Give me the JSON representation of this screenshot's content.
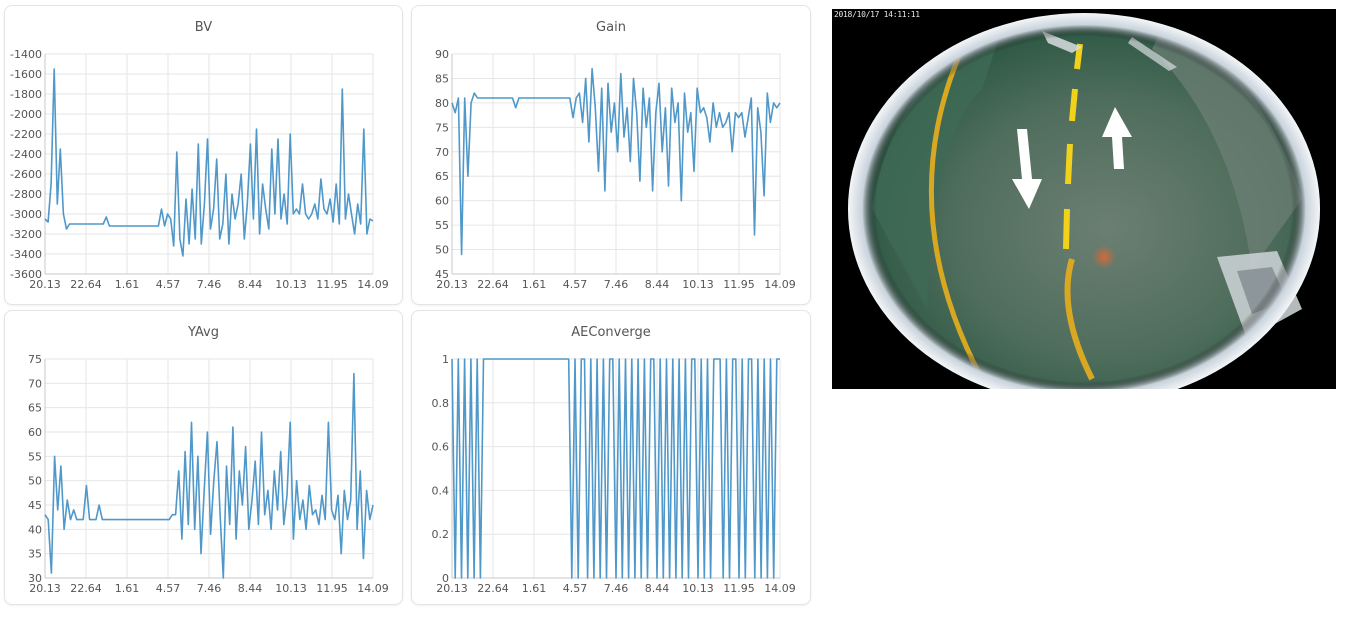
{
  "chart_data": [
    {
      "type": "line",
      "title": "BV",
      "x_tick_labels": [
        "20.13",
        "22.64",
        "1.61",
        "4.57",
        "7.46",
        "8.44",
        "10.13",
        "11.95",
        "14.09"
      ],
      "y_ticks": [
        -1400,
        -1600,
        -1800,
        -2000,
        -2200,
        -2400,
        -2600,
        -2800,
        -3000,
        -3200,
        -3400,
        -3600
      ],
      "ylim": [
        -3600,
        -1400
      ],
      "grid": true,
      "series": [
        {
          "values": [
            -3050,
            -3080,
            -2700,
            -1550,
            -2900,
            -2350,
            -3000,
            -3150,
            -3100,
            -3100,
            -3100,
            -3100,
            -3100,
            -3100,
            -3100,
            -3100,
            -3100,
            -3100,
            -3100,
            -3100,
            -3030,
            -3120,
            -3120,
            -3120,
            -3120,
            -3120,
            -3120,
            -3120,
            -3120,
            -3120,
            -3120,
            -3120,
            -3120,
            -3120,
            -3120,
            -3120,
            -3120,
            -3120,
            -2950,
            -3120,
            -3000,
            -3050,
            -3320,
            -2380,
            -3250,
            -3420,
            -2850,
            -3300,
            -2750,
            -3250,
            -2300,
            -3300,
            -2900,
            -2250,
            -3150,
            -2950,
            -2450,
            -3250,
            -3100,
            -2600,
            -3300,
            -2800,
            -3050,
            -2900,
            -2600,
            -3250,
            -2900,
            -2300,
            -3050,
            -2150,
            -3200,
            -2700,
            -2950,
            -3150,
            -2350,
            -3000,
            -2250,
            -3050,
            -2800,
            -3100,
            -2200,
            -3000,
            -2950,
            -3000,
            -2700,
            -3000,
            -3050,
            -3000,
            -2900,
            -3050,
            -2650,
            -2950,
            -3000,
            -2850,
            -3080,
            -2700,
            -3100,
            -1750,
            -3050,
            -2800,
            -3000,
            -3200,
            -2900,
            -3100,
            -2150,
            -3200,
            -3050,
            -3070
          ]
        }
      ]
    },
    {
      "type": "line",
      "title": "Gain",
      "x_tick_labels": [
        "20.13",
        "22.64",
        "1.61",
        "4.57",
        "7.46",
        "8.44",
        "10.13",
        "11.95",
        "14.09"
      ],
      "y_ticks": [
        90,
        85,
        80,
        75,
        70,
        65,
        60,
        55,
        50,
        45
      ],
      "ylim": [
        45,
        90
      ],
      "grid": true,
      "series": [
        {
          "values": [
            80,
            78,
            81,
            49,
            81,
            65,
            80,
            82,
            81,
            81,
            81,
            81,
            81,
            81,
            81,
            81,
            81,
            81,
            81,
            81,
            79,
            81,
            81,
            81,
            81,
            81,
            81,
            81,
            81,
            81,
            81,
            81,
            81,
            81,
            81,
            81,
            81,
            81,
            77,
            81,
            82,
            76,
            85,
            72,
            87,
            79,
            66,
            83,
            62,
            84,
            74,
            80,
            70,
            86,
            73,
            79,
            68,
            85,
            78,
            64,
            83,
            75,
            81,
            62,
            78,
            84,
            70,
            79,
            63,
            83,
            76,
            80,
            60,
            82,
            74,
            78,
            66,
            83,
            78,
            79,
            77,
            72,
            80,
            75,
            78,
            75,
            76,
            78,
            70,
            78,
            77,
            78,
            73,
            77,
            81,
            53,
            79,
            74,
            61,
            82,
            76,
            80,
            79,
            80
          ]
        }
      ]
    },
    {
      "type": "line",
      "title": "YAvg",
      "x_tick_labels": [
        "20.13",
        "22.64",
        "1.61",
        "4.57",
        "7.46",
        "8.44",
        "10.13",
        "11.95",
        "14.09"
      ],
      "y_ticks": [
        75,
        70,
        65,
        60,
        55,
        50,
        45,
        40,
        35,
        30
      ],
      "ylim": [
        30,
        75
      ],
      "grid": true,
      "series": [
        {
          "values": [
            43,
            42,
            31,
            55,
            44,
            53,
            40,
            46,
            42,
            44,
            42,
            42,
            42,
            49,
            42,
            42,
            42,
            45,
            42,
            42,
            42,
            42,
            42,
            42,
            42,
            42,
            42,
            42,
            42,
            42,
            42,
            42,
            42,
            42,
            42,
            42,
            42,
            42,
            42,
            42,
            43,
            43,
            52,
            38,
            56,
            41,
            62,
            40,
            55,
            35,
            48,
            60,
            39,
            50,
            58,
            43,
            30,
            53,
            41,
            61,
            38,
            52,
            45,
            57,
            40,
            46,
            54,
            41,
            60,
            43,
            48,
            40,
            52,
            44,
            56,
            41,
            47,
            62,
            38,
            50,
            42,
            46,
            40,
            49,
            43,
            44,
            41,
            47,
            42,
            62,
            44,
            42,
            47,
            35,
            48,
            42,
            46,
            72,
            40,
            52,
            34,
            48,
            42,
            45
          ]
        }
      ]
    },
    {
      "type": "line",
      "title": "AEConverge",
      "x_tick_labels": [
        "20.13",
        "22.64",
        "1.61",
        "4.57",
        "7.46",
        "8.44",
        "10.13",
        "11.95",
        "14.09"
      ],
      "y_ticks": [
        1,
        0.8,
        0.6,
        0.4,
        0.2,
        0
      ],
      "ylim": [
        0,
        1
      ],
      "grid": true,
      "series": [
        {
          "values": [
            1,
            0,
            1,
            0,
            1,
            0,
            1,
            0,
            1,
            0,
            1,
            1,
            1,
            1,
            1,
            1,
            1,
            1,
            1,
            1,
            1,
            1,
            1,
            1,
            1,
            1,
            1,
            1,
            1,
            1,
            1,
            1,
            1,
            1,
            1,
            1,
            1,
            1,
            0,
            1,
            0,
            1,
            1,
            0,
            1,
            0,
            1,
            0,
            1,
            0,
            1,
            1,
            0,
            1,
            0,
            1,
            0,
            1,
            0,
            1,
            0,
            1,
            0,
            1,
            1,
            0,
            1,
            0,
            1,
            0,
            1,
            0,
            1,
            0,
            1,
            0,
            1,
            1,
            0,
            1,
            0,
            1,
            0,
            1,
            1,
            1,
            0,
            1,
            0,
            1,
            1,
            0,
            1,
            0,
            1,
            1,
            0,
            1,
            0,
            1,
            0,
            1,
            0,
            1,
            1
          ]
        }
      ]
    }
  ],
  "camera": {
    "timestamp": "2018/10/17 14:11:11"
  },
  "colors": {
    "series": "#4f98c9",
    "grid": "#e6e6e6"
  }
}
